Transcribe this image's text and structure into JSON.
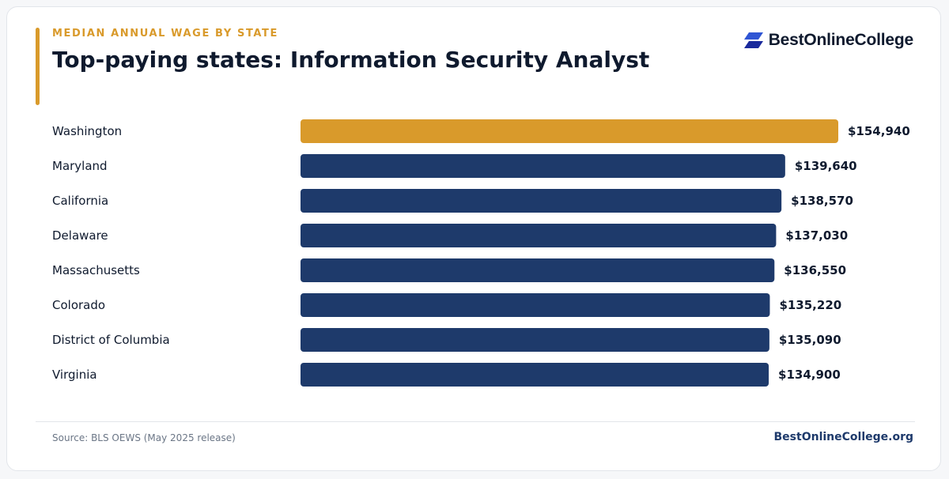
{
  "header": {
    "eyebrow": "MEDIAN ANNUAL WAGE BY STATE",
    "title": "Top-paying states: Information Security Analyst"
  },
  "brand": {
    "name": "BestOnlineCollege",
    "icon": "brand-logo-icon",
    "color": "#2f55d4"
  },
  "footer": {
    "source": "Source: BLS OEWS (May 2025 release)",
    "site": "BestOnlineCollege.org"
  },
  "colors": {
    "accent": "#d99a2b",
    "bar": "#1e3a6b",
    "text": "#0f1a2e"
  },
  "chart_data": {
    "type": "bar",
    "orientation": "horizontal",
    "categories": [
      "Washington",
      "Maryland",
      "California",
      "Delaware",
      "Massachusetts",
      "Colorado",
      "District of Columbia",
      "Virginia"
    ],
    "values": [
      154940,
      139640,
      138570,
      137030,
      136550,
      135220,
      135090,
      134900
    ],
    "value_labels": [
      "$154,940",
      "$139,640",
      "$138,570",
      "$137,030",
      "$136,550",
      "$135,220",
      "$135,090",
      "$134,900"
    ],
    "highlight_index": 0,
    "xlim": [
      0,
      154940
    ],
    "grid": false,
    "legend": "none"
  }
}
